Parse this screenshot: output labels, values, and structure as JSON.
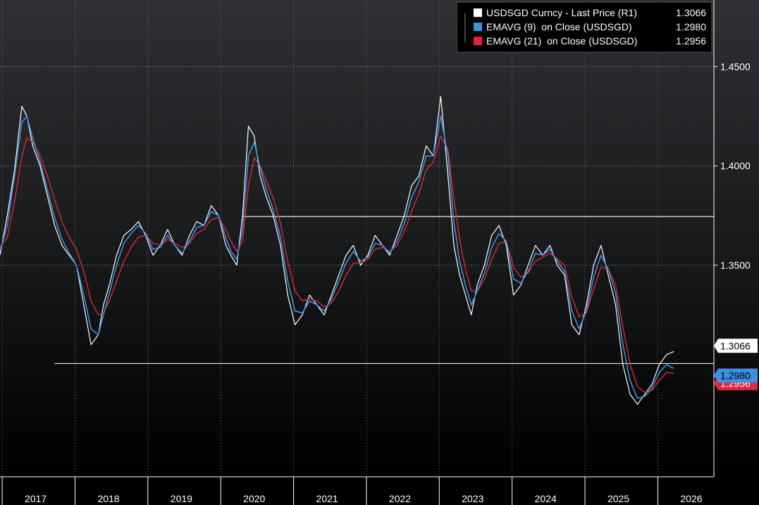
{
  "chart_data": {
    "type": "line",
    "legend_position": "top-right",
    "grid": true,
    "x_range": [
      2016.55,
      2026.35
    ],
    "ylim": [
      1.2435,
      1.4835
    ],
    "y_ticks": [
      "1.4500",
      "1.4000",
      "1.3500"
    ],
    "y_tick_values": [
      1.45,
      1.4,
      1.35
    ],
    "x_ticks": [
      "2017",
      "2018",
      "2019",
      "2020",
      "2021",
      "2022",
      "2023",
      "2024",
      "2025",
      "2026"
    ],
    "x_tick_values": [
      2017,
      2018,
      2019,
      2020,
      2021,
      2022,
      2023,
      2024,
      2025,
      2026
    ],
    "reference_lines": [
      1.3745,
      1.3005
    ],
    "series": [
      {
        "name": "USDSGD Curncy - Last Price (R1)",
        "last": "1.3066",
        "color": "#ffffff",
        "x": [
          2016.55,
          2016.65,
          2016.75,
          2016.85,
          2016.92,
          2017.0,
          2017.1,
          2017.2,
          2017.3,
          2017.4,
          2017.5,
          2017.6,
          2017.7,
          2017.8,
          2017.9,
          2017.97,
          2018.05,
          2018.15,
          2018.25,
          2018.35,
          2018.45,
          2018.55,
          2018.65,
          2018.75,
          2018.85,
          2018.95,
          2019.05,
          2019.15,
          2019.25,
          2019.35,
          2019.45,
          2019.55,
          2019.65,
          2019.72,
          2019.8,
          2019.88,
          2019.96,
          2020.04,
          2020.12,
          2020.2,
          2020.3,
          2020.4,
          2020.5,
          2020.6,
          2020.7,
          2020.8,
          2020.9,
          2021.0,
          2021.1,
          2021.2,
          2021.3,
          2021.4,
          2021.5,
          2021.6,
          2021.7,
          2021.8,
          2021.9,
          2022.0,
          2022.1,
          2022.2,
          2022.3,
          2022.4,
          2022.5,
          2022.6,
          2022.7,
          2022.78,
          2022.86,
          2022.94,
          2023.02,
          2023.1,
          2023.2,
          2023.3,
          2023.4,
          2023.5,
          2023.6,
          2023.7,
          2023.8,
          2023.9,
          2024.0,
          2024.1,
          2024.2,
          2024.3,
          2024.4,
          2024.5,
          2024.6,
          2024.7,
          2024.8,
          2024.9,
          2025.0,
          2025.1,
          2025.2,
          2025.3,
          2025.4,
          2025.5,
          2025.6,
          2025.7,
          2025.8
        ],
        "y": [
          1.355,
          1.375,
          1.398,
          1.43,
          1.425,
          1.41,
          1.4,
          1.385,
          1.37,
          1.36,
          1.355,
          1.35,
          1.33,
          1.31,
          1.315,
          1.33,
          1.34,
          1.355,
          1.365,
          1.368,
          1.372,
          1.365,
          1.355,
          1.36,
          1.368,
          1.36,
          1.355,
          1.365,
          1.372,
          1.37,
          1.38,
          1.375,
          1.36,
          1.355,
          1.35,
          1.375,
          1.42,
          1.415,
          1.395,
          1.385,
          1.375,
          1.36,
          1.335,
          1.32,
          1.325,
          1.335,
          1.33,
          1.325,
          1.335,
          1.345,
          1.355,
          1.36,
          1.35,
          1.355,
          1.365,
          1.36,
          1.355,
          1.365,
          1.375,
          1.39,
          1.395,
          1.41,
          1.405,
          1.435,
          1.395,
          1.36,
          1.345,
          1.335,
          1.325,
          1.34,
          1.35,
          1.365,
          1.37,
          1.36,
          1.335,
          1.34,
          1.35,
          1.36,
          1.355,
          1.36,
          1.35,
          1.345,
          1.32,
          1.315,
          1.33,
          1.35,
          1.36,
          1.345,
          1.33,
          1.3,
          1.285,
          1.28,
          1.285,
          1.29,
          1.3,
          1.305,
          1.3066
        ]
      },
      {
        "name": "EMAVG (9)  on Close (USDSGD)",
        "last": "1.2980",
        "color": "#3d8fe0",
        "x": [
          2016.55,
          2016.65,
          2016.75,
          2016.85,
          2016.92,
          2017.0,
          2017.1,
          2017.2,
          2017.3,
          2017.4,
          2017.5,
          2017.6,
          2017.7,
          2017.8,
          2017.9,
          2017.97,
          2018.05,
          2018.15,
          2018.25,
          2018.35,
          2018.45,
          2018.55,
          2018.65,
          2018.75,
          2018.85,
          2018.95,
          2019.05,
          2019.15,
          2019.25,
          2019.35,
          2019.45,
          2019.55,
          2019.65,
          2019.72,
          2019.8,
          2019.88,
          2019.96,
          2020.04,
          2020.12,
          2020.2,
          2020.3,
          2020.4,
          2020.5,
          2020.6,
          2020.7,
          2020.8,
          2020.9,
          2021.0,
          2021.1,
          2021.2,
          2021.3,
          2021.4,
          2021.5,
          2021.6,
          2021.7,
          2021.8,
          2021.9,
          2022.0,
          2022.1,
          2022.2,
          2022.3,
          2022.4,
          2022.5,
          2022.6,
          2022.7,
          2022.78,
          2022.86,
          2022.94,
          2023.02,
          2023.1,
          2023.2,
          2023.3,
          2023.4,
          2023.5,
          2023.6,
          2023.7,
          2023.8,
          2023.9,
          2024.0,
          2024.1,
          2024.2,
          2024.3,
          2024.4,
          2024.5,
          2024.6,
          2024.7,
          2024.8,
          2024.9,
          2025.0,
          2025.1,
          2025.2,
          2025.3,
          2025.4,
          2025.5,
          2025.6,
          2025.7,
          2025.8
        ],
        "y": [
          1.357,
          1.37,
          1.395,
          1.422,
          1.425,
          1.414,
          1.402,
          1.388,
          1.374,
          1.363,
          1.356,
          1.35,
          1.335,
          1.318,
          1.315,
          1.325,
          1.336,
          1.35,
          1.361,
          1.366,
          1.37,
          1.366,
          1.358,
          1.359,
          1.365,
          1.36,
          1.356,
          1.362,
          1.369,
          1.37,
          1.377,
          1.375,
          1.364,
          1.357,
          1.353,
          1.368,
          1.405,
          1.412,
          1.399,
          1.389,
          1.378,
          1.364,
          1.342,
          1.327,
          1.326,
          1.332,
          1.33,
          1.327,
          1.333,
          1.342,
          1.351,
          1.357,
          1.352,
          1.354,
          1.361,
          1.36,
          1.356,
          1.362,
          1.371,
          1.384,
          1.392,
          1.405,
          1.405,
          1.425,
          1.405,
          1.372,
          1.352,
          1.34,
          1.33,
          1.337,
          1.346,
          1.359,
          1.366,
          1.362,
          1.343,
          1.341,
          1.347,
          1.356,
          1.355,
          1.358,
          1.352,
          1.347,
          1.327,
          1.318,
          1.327,
          1.344,
          1.355,
          1.348,
          1.336,
          1.31,
          1.292,
          1.283,
          1.284,
          1.288,
          1.296,
          1.3,
          1.298
        ]
      },
      {
        "name": "EMAVG (21)  on Close (USDSGD)",
        "last": "1.2956",
        "color": "#e0263c",
        "x": [
          2016.55,
          2016.65,
          2016.75,
          2016.85,
          2016.92,
          2017.0,
          2017.1,
          2017.2,
          2017.3,
          2017.4,
          2017.5,
          2017.6,
          2017.7,
          2017.8,
          2017.9,
          2017.97,
          2018.05,
          2018.15,
          2018.25,
          2018.35,
          2018.45,
          2018.55,
          2018.65,
          2018.75,
          2018.85,
          2018.95,
          2019.05,
          2019.15,
          2019.25,
          2019.35,
          2019.45,
          2019.55,
          2019.65,
          2019.72,
          2019.8,
          2019.88,
          2019.96,
          2020.04,
          2020.12,
          2020.2,
          2020.3,
          2020.4,
          2020.5,
          2020.6,
          2020.7,
          2020.8,
          2020.9,
          2021.0,
          2021.1,
          2021.2,
          2021.3,
          2021.4,
          2021.5,
          2021.6,
          2021.7,
          2021.8,
          2021.9,
          2022.0,
          2022.1,
          2022.2,
          2022.3,
          2022.4,
          2022.5,
          2022.6,
          2022.7,
          2022.78,
          2022.86,
          2022.94,
          2023.02,
          2023.1,
          2023.2,
          2023.3,
          2023.4,
          2023.5,
          2023.6,
          2023.7,
          2023.8,
          2023.9,
          2024.0,
          2024.1,
          2024.2,
          2024.3,
          2024.4,
          2024.5,
          2024.6,
          2024.7,
          2024.8,
          2024.9,
          2025.0,
          2025.1,
          2025.2,
          2025.3,
          2025.4,
          2025.5,
          2025.6,
          2025.7,
          2025.8
        ],
        "y": [
          1.359,
          1.364,
          1.382,
          1.405,
          1.414,
          1.412,
          1.405,
          1.395,
          1.383,
          1.372,
          1.364,
          1.358,
          1.347,
          1.332,
          1.325,
          1.326,
          1.332,
          1.342,
          1.352,
          1.359,
          1.364,
          1.365,
          1.361,
          1.36,
          1.363,
          1.361,
          1.359,
          1.361,
          1.366,
          1.368,
          1.373,
          1.374,
          1.368,
          1.362,
          1.357,
          1.362,
          1.39,
          1.404,
          1.4,
          1.393,
          1.384,
          1.371,
          1.352,
          1.337,
          1.332,
          1.333,
          1.332,
          1.329,
          1.331,
          1.337,
          1.345,
          1.351,
          1.351,
          1.353,
          1.358,
          1.359,
          1.357,
          1.36,
          1.367,
          1.377,
          1.386,
          1.398,
          1.402,
          1.415,
          1.408,
          1.384,
          1.363,
          1.348,
          1.337,
          1.337,
          1.343,
          1.353,
          1.361,
          1.362,
          1.349,
          1.344,
          1.346,
          1.352,
          1.354,
          1.356,
          1.353,
          1.35,
          1.334,
          1.324,
          1.326,
          1.338,
          1.349,
          1.348,
          1.34,
          1.319,
          1.3,
          1.289,
          1.286,
          1.287,
          1.292,
          1.296,
          1.2956
        ]
      }
    ]
  }
}
